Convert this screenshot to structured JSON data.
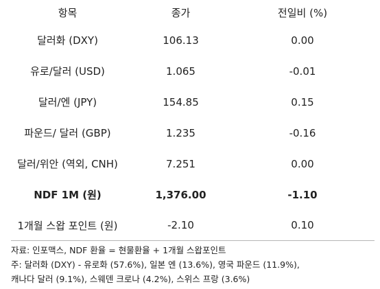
{
  "table": {
    "headers": {
      "item": "항목",
      "price": "종가",
      "change": "전일비 (%)"
    },
    "rows": [
      {
        "item": "달러화 (DXY)",
        "price": "106.13",
        "change": "0.00"
      },
      {
        "item": "유로/달러 (USD)",
        "price": "1.065",
        "change": "-0.01"
      },
      {
        "item": "달러/엔 (JPY)",
        "price": "154.85",
        "change": "0.15"
      },
      {
        "item": "파운드/ 달러 (GBP)",
        "price": "1.235",
        "change": "-0.16"
      },
      {
        "item": "달러/위안 (역외, CNH)",
        "price": "7.251",
        "change": "0.00"
      },
      {
        "item": "NDF 1M (원)",
        "price": "1,376.00",
        "change": "-1.10"
      },
      {
        "item": "1개월 스왑 포인트 (원)",
        "price": "-2.10",
        "change": "0.10"
      }
    ]
  },
  "notes": {
    "source": "자료: 인포맥스, NDF 환율 = 현물환율 + 1개월 스왑포인트",
    "note_line1": "주: 달러화 (DXY) - 유로화 (57.6%), 일본 엔 (13.6%), 영국 파운드 (11.9%),",
    "note_line2": "캐나다 달러 (9.1%), 스웨덴 크로나 (4.2%), 스위스 프랑 (3.6%)"
  }
}
